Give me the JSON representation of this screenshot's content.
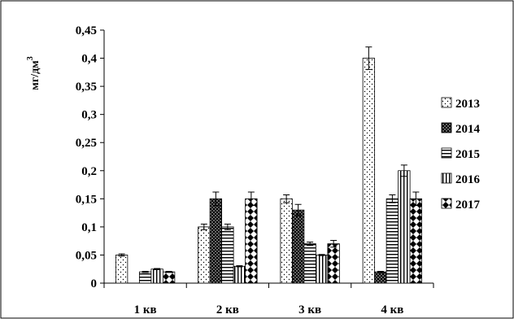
{
  "chart_data": {
    "type": "bar",
    "title": "",
    "xlabel": "",
    "ylabel": "мг/дм",
    "ylabel_sup": "3",
    "categories": [
      "1 кв",
      "2 кв",
      "3 кв",
      "4 кв"
    ],
    "ylim": [
      0,
      0.45
    ],
    "yticks": [
      0,
      0.05,
      0.1,
      0.15,
      0.2,
      0.25,
      0.3,
      0.35,
      0.4,
      0.45
    ],
    "ytick_labels": [
      "0",
      "0,05",
      "0,1",
      "0,15",
      "0,2",
      "0,25",
      "0,3",
      "0,35",
      "0,4",
      "0,45"
    ],
    "grid": false,
    "legend_position": "right",
    "error_bars": true,
    "series": [
      {
        "name": "2013",
        "pattern": "dots",
        "values": [
          0.05,
          0.1,
          0.15,
          0.4
        ],
        "errors": [
          0.002,
          0.005,
          0.007,
          0.02
        ]
      },
      {
        "name": "2014",
        "pattern": "dense-dots",
        "values": [
          0.0,
          0.15,
          0.13,
          0.02
        ],
        "errors": [
          0,
          0.012,
          0.01,
          0.001
        ]
      },
      {
        "name": "2015",
        "pattern": "horizontal-lines",
        "values": [
          0.02,
          0.1,
          0.07,
          0.15
        ],
        "errors": [
          0.001,
          0.005,
          0.003,
          0.007
        ]
      },
      {
        "name": "2016",
        "pattern": "vertical-lines",
        "values": [
          0.025,
          0.03,
          0.05,
          0.2
        ],
        "errors": [
          0.001,
          0.001,
          0.001,
          0.01
        ]
      },
      {
        "name": "2017",
        "pattern": "diamonds",
        "values": [
          0.02,
          0.15,
          0.07,
          0.15
        ],
        "errors": [
          0.001,
          0.012,
          0.006,
          0.012
        ]
      }
    ]
  }
}
